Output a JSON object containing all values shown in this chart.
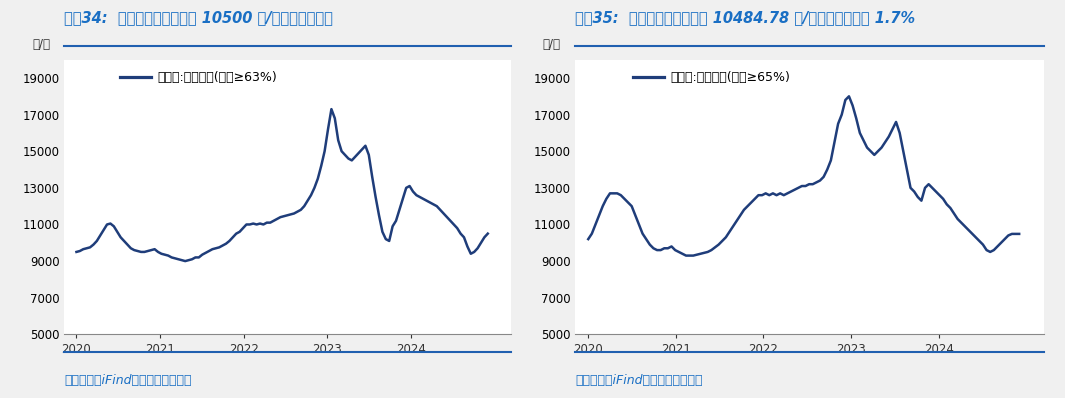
{
  "title1": "图蚈34:  本周国产鱼粉现货价 10500 元/吨，较上周持平",
  "title2": "图蚈35:  本周进口鱼粉现货价 10484.78 元/吨，较上周下跌 1.7%",
  "source_text": "资料来源：iFind，国盛证券研究所",
  "ylabel": "元/吨",
  "legend1": "现货价:国产鱼粉(蛋白≥63%)",
  "legend2": "现货价:进口鱼粉(蛋白≥65%)",
  "line_color": "#1f3d7a",
  "title_color": "#1a6fc4",
  "bg_color": "#f0f0f0",
  "plot_bg": "#ffffff",
  "ylim": [
    5000,
    20000
  ],
  "yticks": [
    5000,
    7000,
    9000,
    11000,
    13000,
    15000,
    17000,
    19000
  ],
  "xticks": [
    2020,
    2021,
    2022,
    2023,
    2024
  ],
  "title_fontsize": 10.5,
  "label_fontsize": 8.5,
  "legend_fontsize": 9,
  "source_fontsize": 9,
  "line_width": 1.8,
  "domestic_prices": [
    9500,
    9550,
    9650,
    9700,
    9750,
    9900,
    10100,
    10400,
    10700,
    11000,
    11050,
    10900,
    10600,
    10300,
    10100,
    9900,
    9700,
    9600,
    9550,
    9500,
    9500,
    9550,
    9600,
    9650,
    9500,
    9400,
    9350,
    9300,
    9200,
    9150,
    9100,
    9050,
    9000,
    9050,
    9100,
    9200,
    9200,
    9350,
    9450,
    9550,
    9650,
    9700,
    9750,
    9850,
    9950,
    10100,
    10300,
    10500,
    10600,
    10800,
    11000,
    11000,
    11050,
    11000,
    11050,
    11000,
    11100,
    11100,
    11200,
    11300,
    11400,
    11450,
    11500,
    11550,
    11600,
    11700,
    11800,
    12000,
    12300,
    12600,
    13000,
    13500,
    14200,
    15000,
    16200,
    17300,
    16800,
    15600,
    15000,
    14800,
    14600,
    14500,
    14700,
    14900,
    15100,
    15300,
    14800,
    13600,
    12500,
    11500,
    10600,
    10200,
    10100,
    10900,
    11200,
    11800,
    12400,
    13000,
    13100,
    12800,
    12600,
    12500,
    12400,
    12300,
    12200,
    12100,
    12000,
    11800,
    11600,
    11400,
    11200,
    11000,
    10800,
    10500,
    10300,
    9800,
    9400,
    9500,
    9700,
    10000,
    10300,
    10500
  ],
  "import_prices": [
    10200,
    10500,
    11000,
    11500,
    12000,
    12400,
    12700,
    12700,
    12700,
    12600,
    12400,
    12200,
    12000,
    11500,
    11000,
    10500,
    10200,
    9900,
    9700,
    9600,
    9600,
    9700,
    9700,
    9800,
    9600,
    9500,
    9400,
    9300,
    9300,
    9300,
    9350,
    9400,
    9450,
    9500,
    9600,
    9750,
    9900,
    10100,
    10300,
    10600,
    10900,
    11200,
    11500,
    11800,
    12000,
    12200,
    12400,
    12600,
    12600,
    12700,
    12600,
    12700,
    12600,
    12700,
    12600,
    12700,
    12800,
    12900,
    13000,
    13100,
    13100,
    13200,
    13200,
    13300,
    13400,
    13600,
    14000,
    14500,
    15500,
    16500,
    17000,
    17800,
    18000,
    17500,
    16800,
    16000,
    15600,
    15200,
    15000,
    14800,
    15000,
    15200,
    15500,
    15800,
    16200,
    16600,
    16000,
    15000,
    14000,
    13000,
    12800,
    12500,
    12300,
    13000,
    13200,
    13000,
    12800,
    12600,
    12400,
    12100,
    11900,
    11600,
    11300,
    11100,
    10900,
    10700,
    10500,
    10300,
    10100,
    9900,
    9600,
    9500,
    9600,
    9800,
    10000,
    10200,
    10400,
    10485,
    10485,
    10485
  ]
}
